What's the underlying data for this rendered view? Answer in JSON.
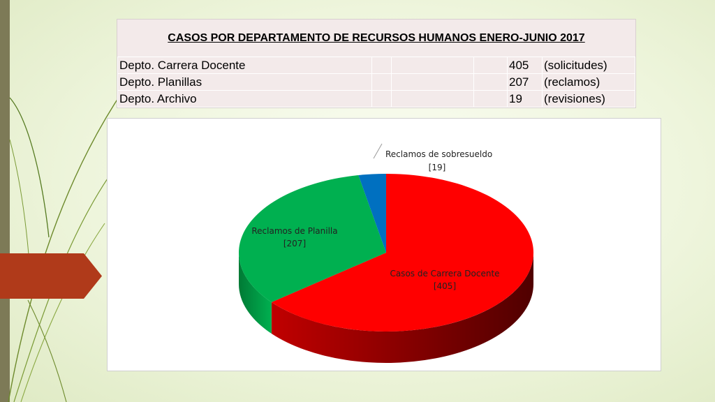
{
  "table": {
    "title": "CASOS POR DEPARTAMENTO DE RECURSOS HUMANOS ENERO-JUNIO 2017",
    "rows": [
      {
        "dept": "Depto. Carrera Docente",
        "value": "405",
        "unit": "(solicitudes)"
      },
      {
        "dept": "Depto. Planillas",
        "value": "207",
        "unit": "(reclamos)"
      },
      {
        "dept": "Depto.  Archivo",
        "value": "19",
        "unit": "(revisiones)"
      }
    ]
  },
  "chart_data": {
    "type": "pie",
    "style": "3d",
    "slices": [
      {
        "label": "Casos de Carrera Docente",
        "value": 405,
        "value_label": "[405]",
        "color": "#ff0000"
      },
      {
        "label": "Reclamos de Planilla",
        "value": 207,
        "value_label": "[207]",
        "color": "#00b050"
      },
      {
        "label": "Reclamos de sobresueldo",
        "value": 19,
        "value_label": "[19]",
        "color": "#0070c0"
      }
    ]
  },
  "colors": {
    "accent_arrow": "#b03a1a",
    "side_bar": "#7d7a57",
    "table_bg": "#f3eaea"
  }
}
